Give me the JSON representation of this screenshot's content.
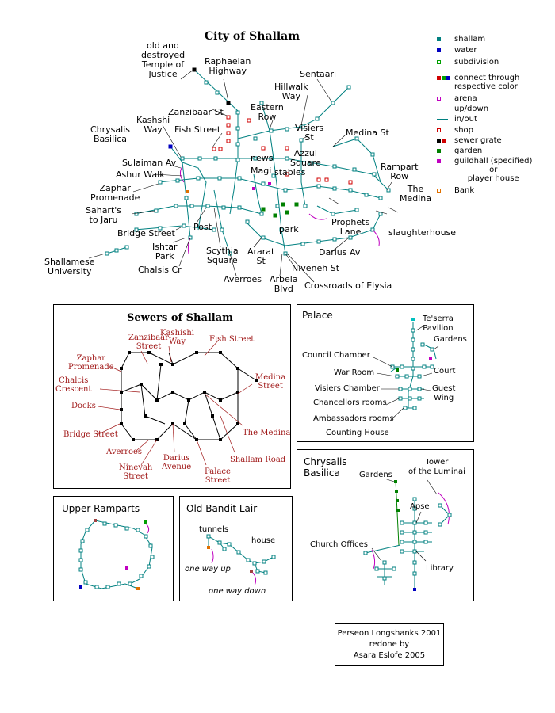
{
  "map_title": "City of Shallam",
  "city_labels": [
    "old and\ndestroyed\nTemple of\nJustice",
    "Raphaelan\nHighway",
    "Sentaari",
    "Hillwalk\nWay",
    "Eastern\nRow",
    "Visiers\nSt",
    "Medina St",
    "Zanzibaar St",
    "Kashshi\nWay",
    "Chrysalis\nBasilica",
    "Fish Street",
    "Sulaiman Av",
    "Ashur Walk",
    "news",
    "Magi",
    "Azzul\nSquare",
    "stables",
    "Rampart\nRow",
    "The\nMedina",
    "Zaphar\nPromenade",
    "Sahart's\nto Jaru",
    "Bridge Street",
    "Post",
    "Prophets\nLane",
    "slaughterhouse",
    "park",
    "Ishtar\nPark",
    "Scythia\nSquare",
    "Ararat\nSt",
    "Darius Av",
    "Shallamese\nUniversity",
    "Chalsis Cr",
    "Niveneh St",
    "Averroes",
    "Arbela\nBlvd",
    "Crossroads of Elysia"
  ],
  "legend": [
    {
      "label": "shallam",
      "color": "#008080"
    },
    {
      "label": "water",
      "color": "#0000c0"
    },
    {
      "label": "subdivision",
      "color": "#00a000"
    },
    {
      "label": "connect through\nrespective color",
      "color": "multi"
    },
    {
      "label": "arena",
      "color": "#c000c0"
    },
    {
      "label": "up/down",
      "color": "#c000c0"
    },
    {
      "label": "in/out",
      "color": "#008080"
    },
    {
      "label": "shop",
      "color": "#d00000"
    },
    {
      "label": "sewer grate",
      "color": "#000000"
    },
    {
      "label": "garden",
      "color": "#008000"
    },
    {
      "label": "guildhall (specified)\nor\nplayer house",
      "color": "#c000c0"
    },
    {
      "label": "Bank",
      "color": "#e07000"
    }
  ],
  "sewers": {
    "title": "Sewers of Shallam",
    "labels": [
      "Zanzibaar\nStreet",
      "Kashishi\nWay",
      "Fish Street",
      "Zaphar\nPromenade",
      "Chalcis\nCrescent",
      "Medina\nStreet",
      "Docks",
      "Bridge Street",
      "The Medina",
      "Averroes",
      "Darius\nAvenue",
      "Shallam Road",
      "Ninevah\nStreet",
      "Palace\nStreet"
    ]
  },
  "palace": {
    "title": "Palace",
    "labels": [
      "Te'serra\nPavilion",
      "Gardens",
      "Council Chamber",
      "War Room",
      "Court",
      "Visiers Chamber",
      "Guest\nWing",
      "Chancellors rooms",
      "Ambassadors rooms",
      "Counting House"
    ]
  },
  "basilica": {
    "title": "Chrysalis\nBasilica",
    "labels": [
      "Tower\nof the Luminai",
      "Gardens",
      "Apse",
      "Church Offices",
      "Library"
    ]
  },
  "ramparts": {
    "title": "Upper Ramparts"
  },
  "bandit": {
    "title": "Old Bandit Lair",
    "labels": [
      "tunnels",
      "house",
      "one way up",
      "one way down"
    ]
  },
  "credit": [
    "Perseon Longshanks 2001",
    "redone by",
    "Asara Eslofe 2005"
  ]
}
